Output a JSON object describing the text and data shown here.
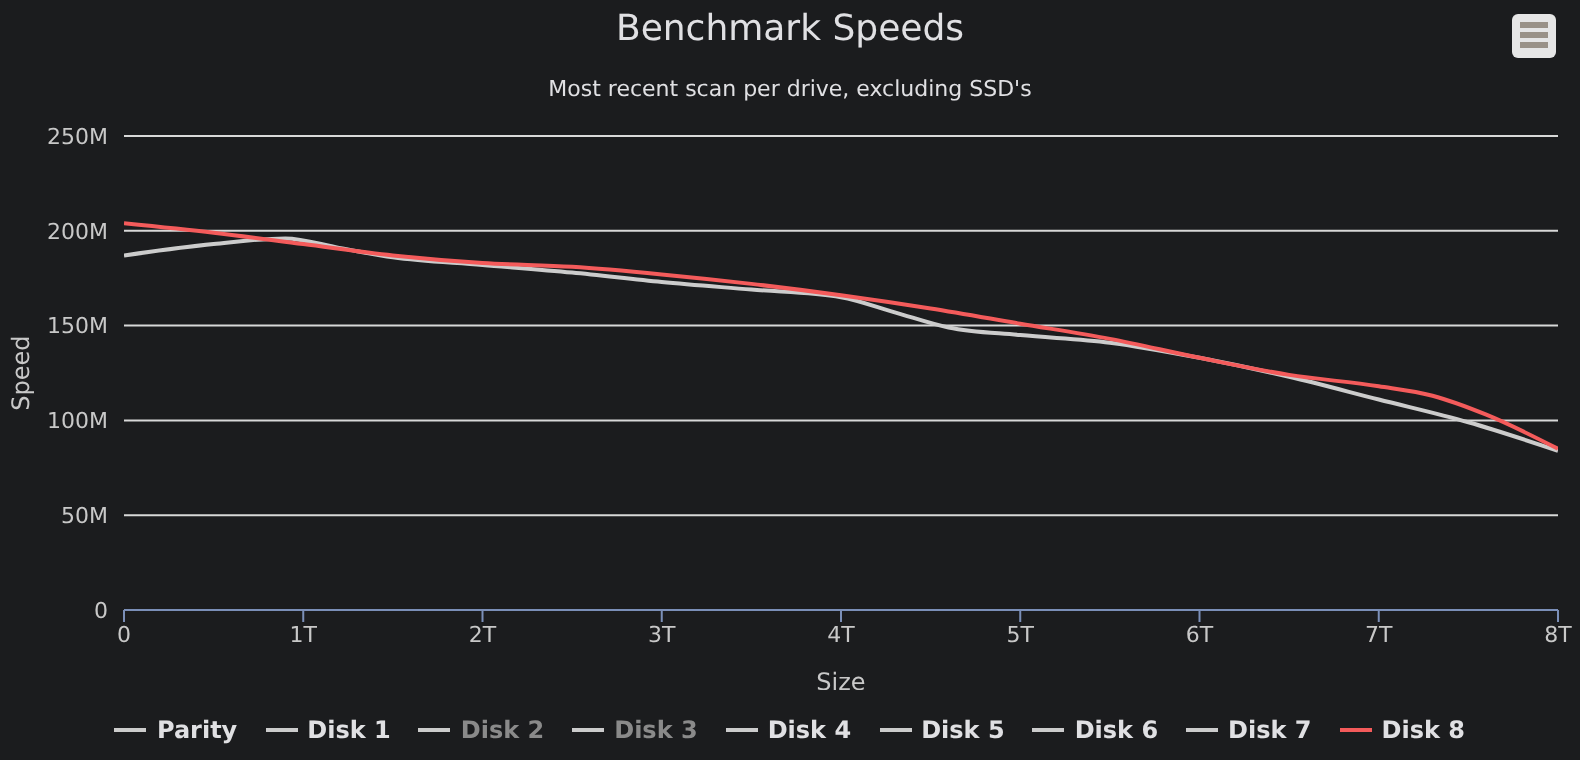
{
  "chart_data": {
    "type": "line",
    "title": "Benchmark Speeds",
    "subtitle": "Most recent scan per drive, excluding SSD's",
    "xlabel": "Size",
    "ylabel": "Speed",
    "xlim": [
      0,
      8
    ],
    "xticks": [
      {
        "value": 0,
        "label": "0"
      },
      {
        "value": 1,
        "label": "1T"
      },
      {
        "value": 2,
        "label": "2T"
      },
      {
        "value": 3,
        "label": "3T"
      },
      {
        "value": 4,
        "label": "4T"
      },
      {
        "value": 5,
        "label": "5T"
      },
      {
        "value": 6,
        "label": "6T"
      },
      {
        "value": 7,
        "label": "7T"
      },
      {
        "value": 8,
        "label": "8T"
      }
    ],
    "ylim": [
      0,
      250
    ],
    "yticks": [
      {
        "value": 0,
        "label": "0"
      },
      {
        "value": 50,
        "label": "50M"
      },
      {
        "value": 100,
        "label": "100M"
      },
      {
        "value": 150,
        "label": "150M"
      },
      {
        "value": 200,
        "label": "200M"
      },
      {
        "value": 250,
        "label": "250M"
      }
    ],
    "grid": "y",
    "legend": "bottom",
    "marker": "none",
    "line_style": "solid",
    "series": [
      {
        "name": "Parity",
        "color": "#cccccc"
      },
      {
        "name": "Disk 1",
        "color": "#cccccc"
      },
      {
        "name": "Disk 2"
      },
      {
        "name": "Disk 3"
      },
      {
        "name": "Disk 4",
        "color": "#cccccc"
      },
      {
        "name": "Disk 5",
        "color": "#cccccc"
      },
      {
        "name": "Disk 6",
        "color": "#cccccc"
      },
      {
        "name": "Disk 7",
        "color": "#cccccc",
        "x": [
          0,
          0.5,
          0.9,
          1.2,
          1.5,
          2,
          2.5,
          3,
          3.5,
          4,
          4.3,
          4.6,
          5,
          5.5,
          6,
          6.5,
          7,
          7.5,
          8
        ],
        "values": [
          187,
          193,
          196,
          191,
          186,
          182,
          178,
          173,
          169,
          165,
          157,
          149,
          145,
          141,
          133,
          123,
          111,
          99,
          84
        ]
      },
      {
        "name": "Disk 8",
        "color": "#f45b5b",
        "x": [
          0,
          0.5,
          1,
          1.5,
          2,
          2.5,
          3,
          3.5,
          4,
          4.5,
          5,
          5.5,
          6,
          6.5,
          7,
          7.3,
          7.6,
          8
        ],
        "values": [
          204,
          199,
          193,
          187,
          183,
          181,
          177,
          172,
          166,
          159,
          151,
          143,
          133,
          124,
          118,
          113,
          103,
          85
        ]
      }
    ]
  }
}
